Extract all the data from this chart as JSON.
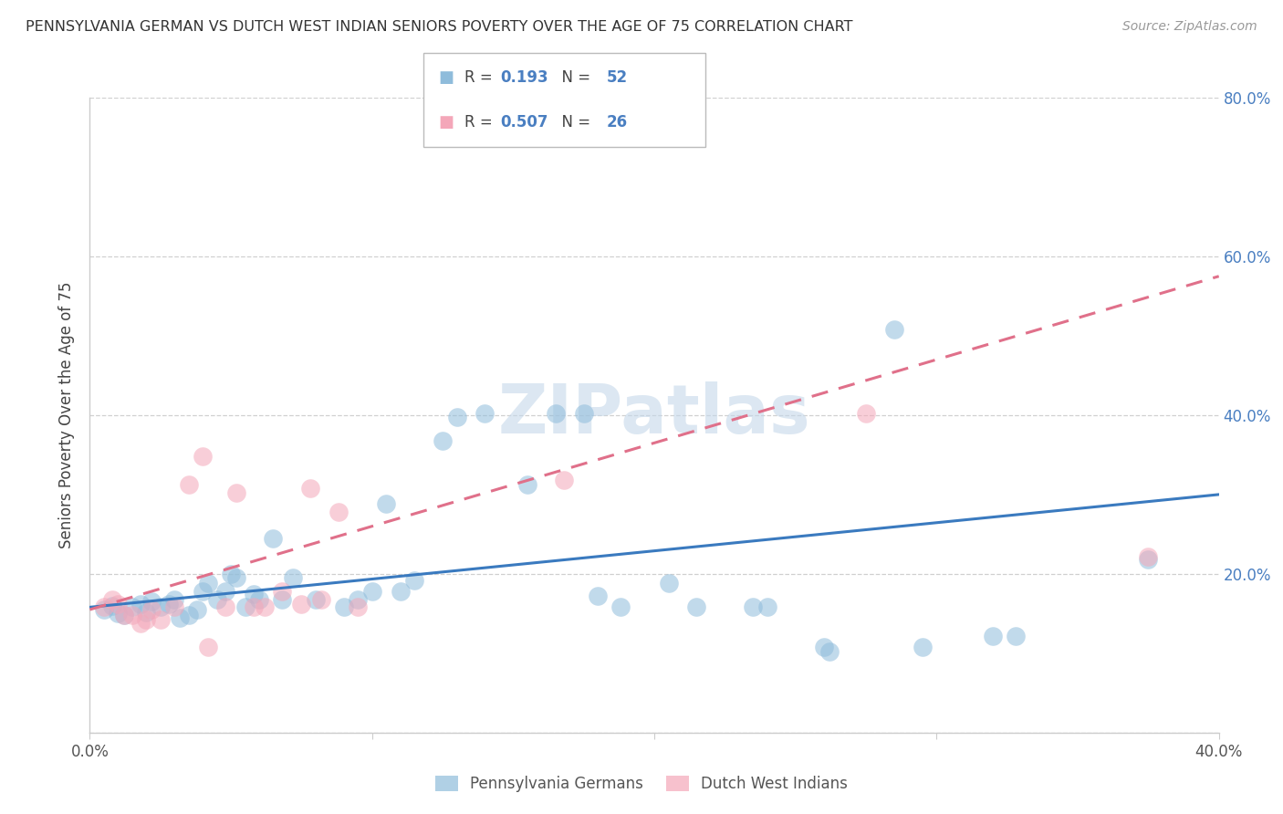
{
  "title": "PENNSYLVANIA GERMAN VS DUTCH WEST INDIAN SENIORS POVERTY OVER THE AGE OF 75 CORRELATION CHART",
  "source": "Source: ZipAtlas.com",
  "ylabel": "Seniors Poverty Over the Age of 75",
  "xlim": [
    0.0,
    0.4
  ],
  "ylim": [
    0.0,
    0.8
  ],
  "xticks": [
    0.0,
    0.1,
    0.2,
    0.3,
    0.4
  ],
  "yticks": [
    0.0,
    0.2,
    0.4,
    0.6,
    0.8
  ],
  "xticklabels": [
    "0.0%",
    "",
    "",
    "",
    "40.0%"
  ],
  "yticklabels_right": [
    "",
    "20.0%",
    "40.0%",
    "60.0%",
    "80.0%"
  ],
  "blue_color": "#8fbcdb",
  "pink_color": "#f4a7b9",
  "blue_line_color": "#3a7abf",
  "pink_line_color": "#e0708a",
  "legend_blue_label": "Pennsylvania Germans",
  "legend_pink_label": "Dutch West Indians",
  "R_blue": "0.193",
  "N_blue": "52",
  "R_pink": "0.507",
  "N_pink": "26",
  "blue_scatter": [
    [
      0.005,
      0.155
    ],
    [
      0.008,
      0.16
    ],
    [
      0.01,
      0.15
    ],
    [
      0.012,
      0.148
    ],
    [
      0.015,
      0.158
    ],
    [
      0.018,
      0.162
    ],
    [
      0.02,
      0.152
    ],
    [
      0.022,
      0.165
    ],
    [
      0.025,
      0.158
    ],
    [
      0.028,
      0.162
    ],
    [
      0.03,
      0.168
    ],
    [
      0.032,
      0.145
    ],
    [
      0.035,
      0.148
    ],
    [
      0.038,
      0.155
    ],
    [
      0.04,
      0.178
    ],
    [
      0.042,
      0.188
    ],
    [
      0.045,
      0.168
    ],
    [
      0.048,
      0.178
    ],
    [
      0.05,
      0.2
    ],
    [
      0.052,
      0.195
    ],
    [
      0.055,
      0.158
    ],
    [
      0.058,
      0.175
    ],
    [
      0.06,
      0.168
    ],
    [
      0.065,
      0.245
    ],
    [
      0.068,
      0.168
    ],
    [
      0.072,
      0.195
    ],
    [
      0.08,
      0.168
    ],
    [
      0.09,
      0.158
    ],
    [
      0.095,
      0.168
    ],
    [
      0.1,
      0.178
    ],
    [
      0.105,
      0.288
    ],
    [
      0.11,
      0.178
    ],
    [
      0.115,
      0.192
    ],
    [
      0.125,
      0.368
    ],
    [
      0.13,
      0.398
    ],
    [
      0.14,
      0.402
    ],
    [
      0.155,
      0.312
    ],
    [
      0.165,
      0.402
    ],
    [
      0.175,
      0.402
    ],
    [
      0.18,
      0.172
    ],
    [
      0.188,
      0.158
    ],
    [
      0.205,
      0.188
    ],
    [
      0.215,
      0.158
    ],
    [
      0.235,
      0.158
    ],
    [
      0.24,
      0.158
    ],
    [
      0.26,
      0.108
    ],
    [
      0.262,
      0.102
    ],
    [
      0.285,
      0.508
    ],
    [
      0.295,
      0.108
    ],
    [
      0.32,
      0.122
    ],
    [
      0.328,
      0.122
    ],
    [
      0.375,
      0.218
    ]
  ],
  "pink_scatter": [
    [
      0.005,
      0.158
    ],
    [
      0.008,
      0.168
    ],
    [
      0.01,
      0.162
    ],
    [
      0.012,
      0.148
    ],
    [
      0.015,
      0.148
    ],
    [
      0.018,
      0.138
    ],
    [
      0.02,
      0.142
    ],
    [
      0.022,
      0.155
    ],
    [
      0.025,
      0.142
    ],
    [
      0.03,
      0.158
    ],
    [
      0.035,
      0.312
    ],
    [
      0.04,
      0.348
    ],
    [
      0.042,
      0.108
    ],
    [
      0.048,
      0.158
    ],
    [
      0.052,
      0.302
    ],
    [
      0.058,
      0.158
    ],
    [
      0.062,
      0.158
    ],
    [
      0.068,
      0.178
    ],
    [
      0.075,
      0.162
    ],
    [
      0.078,
      0.308
    ],
    [
      0.082,
      0.168
    ],
    [
      0.088,
      0.278
    ],
    [
      0.095,
      0.158
    ],
    [
      0.168,
      0.318
    ],
    [
      0.275,
      0.402
    ],
    [
      0.375,
      0.222
    ]
  ],
  "blue_line_x": [
    0.0,
    0.4
  ],
  "blue_line_y": [
    0.158,
    0.3
  ],
  "pink_line_x": [
    0.0,
    0.4
  ],
  "pink_line_y": [
    0.155,
    0.575
  ],
  "watermark": "ZIPatlas",
  "bg_color": "#ffffff",
  "grid_color": "#d0d0d0"
}
